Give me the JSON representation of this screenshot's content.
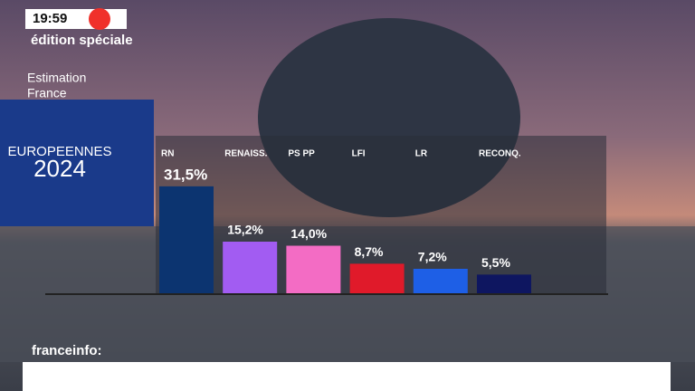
{
  "overlay": {
    "time": "19:59",
    "program": "édition spéciale",
    "channel": "franceinfo:",
    "background_sign": [
      "EUROPEENNES",
      "2024"
    ]
  },
  "chart_data": {
    "type": "bar",
    "title": [
      "Estimation",
      "France"
    ],
    "categories": [
      "RN",
      "RENAISS.",
      "PS PP",
      "LFI",
      "LR",
      "RECONQ."
    ],
    "values": [
      31.5,
      15.2,
      14.0,
      8.7,
      7.2,
      5.5
    ],
    "value_labels": [
      "31,5%",
      "15,2%",
      "14,0%",
      "8,7%",
      "7,2%",
      "5,5%"
    ],
    "colors": [
      "#0c3470",
      "#a25cf2",
      "#f36cc4",
      "#e01a2a",
      "#1e5fe6",
      "#0e1660"
    ]
  }
}
